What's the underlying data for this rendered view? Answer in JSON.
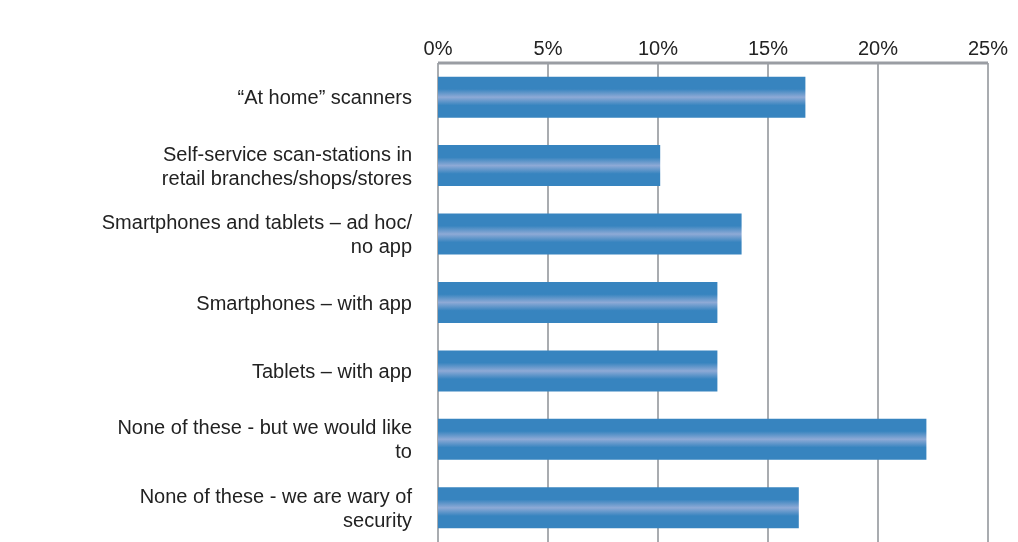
{
  "chart_data": {
    "type": "bar",
    "orientation": "horizontal",
    "categories": [
      "“At home” scanners",
      "Self-service scan-stations in retail branches/shops/stores",
      "Smartphones and tablets – ad hoc/ no app",
      "Smartphones – with app",
      "Tablets – with app",
      "None of these - but we would like to",
      "None of these - we are wary of security"
    ],
    "values": [
      16.7,
      10.1,
      13.8,
      12.7,
      12.7,
      22.2,
      16.4
    ],
    "color": "#3784bf",
    "xlim": [
      0,
      25
    ],
    "xticks": [
      {
        "value": 0,
        "label": "0%"
      },
      {
        "value": 5,
        "label": "5%"
      },
      {
        "value": 10,
        "label": "10%"
      },
      {
        "value": 15,
        "label": "15%"
      },
      {
        "value": 20,
        "label": "20%"
      },
      {
        "value": 25,
        "label": "25%"
      }
    ],
    "grid": "x"
  }
}
